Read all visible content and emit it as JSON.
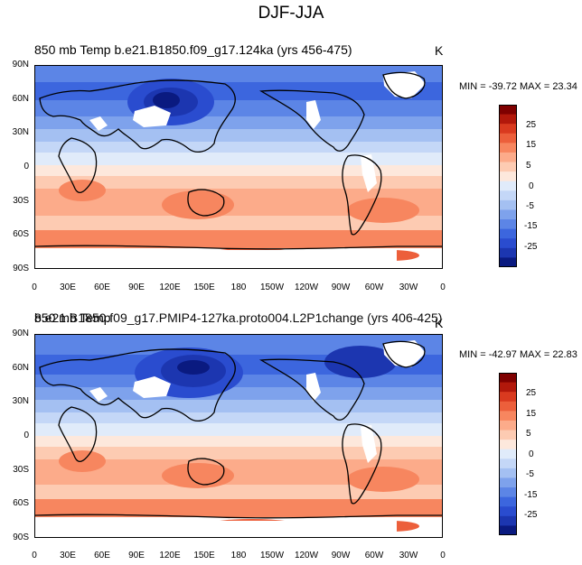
{
  "main_title": "DJF-JJA",
  "panels": [
    {
      "title": "850 mb Temp  b.e21.B1850.f09_g17.124ka (yrs 456-475)",
      "unit": "K",
      "minmax": "MIN = -39.72 MAX =  23.34"
    },
    {
      "title": "850 mb Temp",
      "title_overlap": "b.e21.B1850.f09_g17.PMIP4-127ka.proto004.L2P1change (yrs 406-425)",
      "unit": "K",
      "minmax": "MIN = -42.97 MAX =  22.83"
    }
  ],
  "lat_labels": [
    "90N",
    "60N",
    "30N",
    "0",
    "30S",
    "60S",
    "90S"
  ],
  "lon_labels": [
    "0",
    "30E",
    "60E",
    "90E",
    "120E",
    "150E",
    "180",
    "150W",
    "120W",
    "90W",
    "60W",
    "30W",
    "0"
  ],
  "colorbar": {
    "labels": [
      "25",
      "15",
      "5",
      "-5",
      "-15",
      "-25"
    ],
    "mid_label": "0",
    "colors": [
      "#7f0000",
      "#b2180b",
      "#d93a1f",
      "#ec5f3b",
      "#f7865f",
      "#fcab8a",
      "#fdcbb2",
      "#fde8dc",
      "#e0ebfa",
      "#c4d7f7",
      "#a4c0f2",
      "#7ea2ec",
      "#5c85e6",
      "#3c66de",
      "#2a4ccf",
      "#1c36b0",
      "#0a1a80"
    ],
    "color_scale_names": [
      "dark-red",
      "red",
      "orange-red",
      "light-red",
      "salmon",
      "pale-salmon",
      "pink",
      "cream",
      "pale-blue",
      "light-blue",
      "sky",
      "mid-blue",
      "blue",
      "royal",
      "deep-blue",
      "navy",
      "dark-navy"
    ]
  }
}
